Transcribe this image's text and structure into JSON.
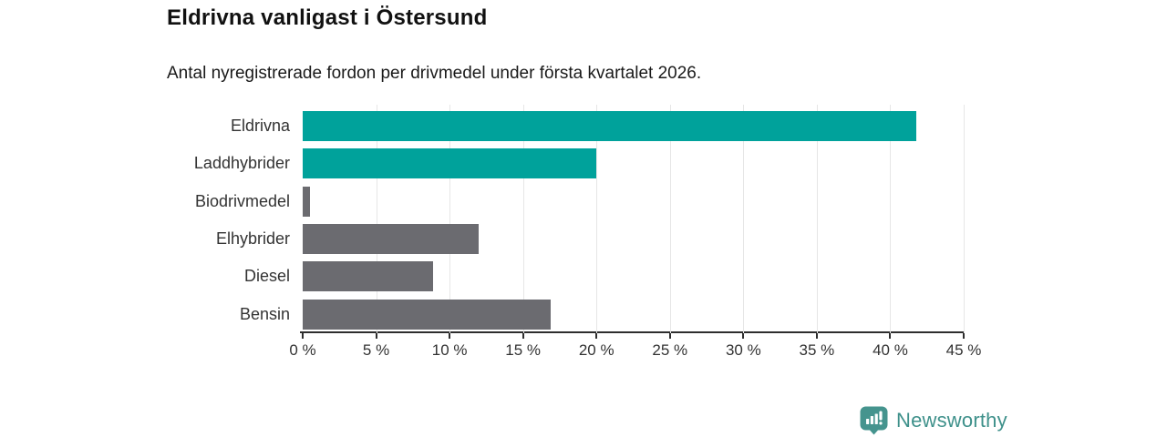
{
  "title": "Eldrivna vanligast i Östersund",
  "subtitle": "Antal nyregistrerade fordon per drivmedel under första kvartalet 2026.",
  "chart_data": {
    "type": "bar",
    "orientation": "horizontal",
    "categories": [
      "Eldrivna",
      "Laddhybrider",
      "Biodrivmedel",
      "Elhybrider",
      "Diesel",
      "Bensin"
    ],
    "values": [
      41.8,
      20.0,
      0.5,
      12.0,
      8.9,
      16.9
    ],
    "bar_colors": [
      "#00a29b",
      "#00a29b",
      "#6b6b70",
      "#6b6b70",
      "#6b6b70",
      "#6b6b70"
    ],
    "title": "Eldrivna vanligast i Östersund",
    "subtitle": "Antal nyregistrerade fordon per drivmedel under första kvartalet 2026.",
    "xlabel": "",
    "ylabel": "",
    "xlim": [
      0,
      45
    ],
    "x_ticks": [
      0,
      5,
      10,
      15,
      20,
      25,
      30,
      35,
      40,
      45
    ],
    "x_tick_labels": [
      "0 %",
      "5 %",
      "10 %",
      "15 %",
      "20 %",
      "25 %",
      "30 %",
      "35 %",
      "40 %",
      "45 %"
    ],
    "unit": "%",
    "grid": true,
    "gridline_orientation": "vertical",
    "legend": false
  },
  "colors": {
    "teal_bar": "#00a29b",
    "gray_bar": "#6b6b70",
    "axis": "#2e2e2e",
    "gridline": "#e6e6e6",
    "text": "#333333",
    "logo_teal": "#45948e",
    "wordmark_teal": "#3f918b"
  },
  "branding": {
    "logo_text": "Newsworthy",
    "logo_icon": "newsworthy-chart-bubble-icon"
  }
}
